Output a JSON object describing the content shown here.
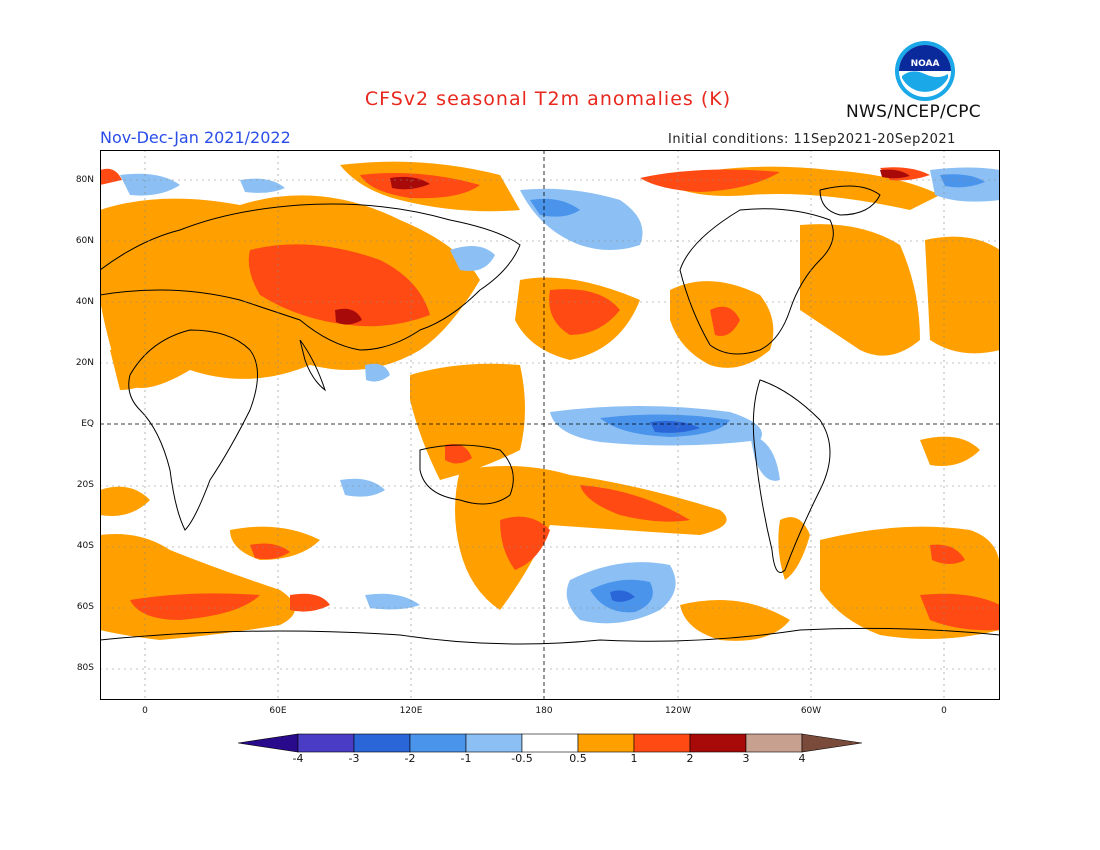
{
  "header": {
    "title": "CFSv2 seasonal T2m anomalies (K)",
    "period": "Nov-Dec-Jan 2021/2022",
    "initial_conditions": "Initial conditions: 11Sep2021-20Sep2021",
    "agency": "NWS/NCEP/CPC",
    "logo_text": "NOAA"
  },
  "map": {
    "lat_labels": [
      "80N",
      "60N",
      "40N",
      "20N",
      "EQ",
      "20S",
      "40S",
      "60S",
      "80S"
    ],
    "lon_labels": [
      "0",
      "60E",
      "120E",
      "180",
      "120W",
      "60W",
      "0"
    ]
  },
  "colorbar": {
    "tick_labels": [
      "-4",
      "-3",
      "-2",
      "-1",
      "-0.5",
      "0.5",
      "1",
      "2",
      "3",
      "4"
    ],
    "colors": {
      "lt_-4": "#2a0a8c",
      "-4_-3": "#4a3cc4",
      "-3_-2": "#2a66d8",
      "-2_-1": "#4a94ec",
      "-1_-0.5": "#8cc0f4",
      "-0.5_0.5": "#ffffff",
      "0.5_1": "#ffa000",
      "1_2": "#ff4a14",
      "2_3": "#a80a0a",
      "3_4": "#c8a090",
      "gt_4": "#7a4a3a"
    }
  },
  "colors": {
    "title": "#e8281e",
    "period": "#2a4de8"
  }
}
